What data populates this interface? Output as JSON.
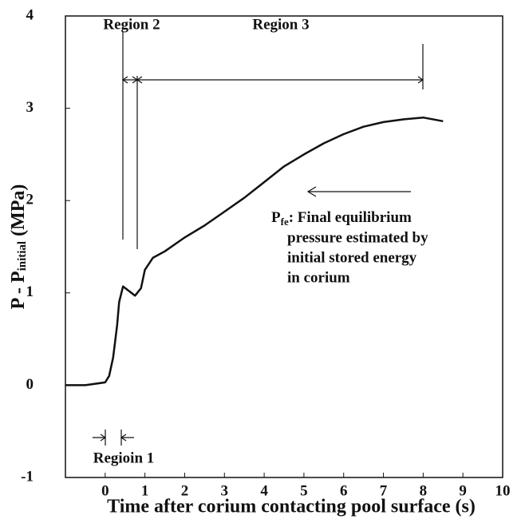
{
  "chart_data": {
    "type": "line",
    "x_label": "Time after corium contacting pool surface (s)",
    "y_label": {
      "main": "P - P",
      "sub": "initial",
      "unit": " (MPa)"
    },
    "xlim": [
      -1,
      10
    ],
    "xticks": [
      0,
      1,
      2,
      3,
      4,
      5,
      6,
      7,
      8,
      9,
      10
    ],
    "ylim": [
      -1,
      4
    ],
    "yticks": [
      -1,
      0,
      1,
      2,
      3,
      4
    ],
    "grid": false,
    "series": [
      {
        "name": "P - Pinitial",
        "color": "#111111",
        "x": [
          -1,
          -0.5,
          0,
          0.1,
          0.2,
          0.3,
          0.35,
          0.45,
          0.6,
          0.75,
          0.9,
          1.0,
          1.2,
          1.5,
          2,
          2.5,
          3,
          3.5,
          4,
          4.5,
          5,
          5.5,
          6,
          6.5,
          7,
          7.5,
          8,
          8.5
        ],
        "values": [
          0,
          0,
          0.03,
          0.1,
          0.3,
          0.65,
          0.9,
          1.07,
          1.02,
          0.97,
          1.05,
          1.25,
          1.38,
          1.45,
          1.6,
          1.73,
          1.88,
          2.03,
          2.2,
          2.37,
          2.5,
          2.62,
          2.72,
          2.8,
          2.85,
          2.88,
          2.9,
          2.86
        ]
      }
    ],
    "annotations": {
      "region1": "Regioin 1",
      "region2": "Region 2",
      "region3": "Region 3",
      "pfe_symbol": "P",
      "pfe_sub": "fe",
      "pfe_lines": [
        ": Final equilibrium",
        "pressure estimated by",
        "initial stored energy",
        "in corium"
      ]
    }
  }
}
